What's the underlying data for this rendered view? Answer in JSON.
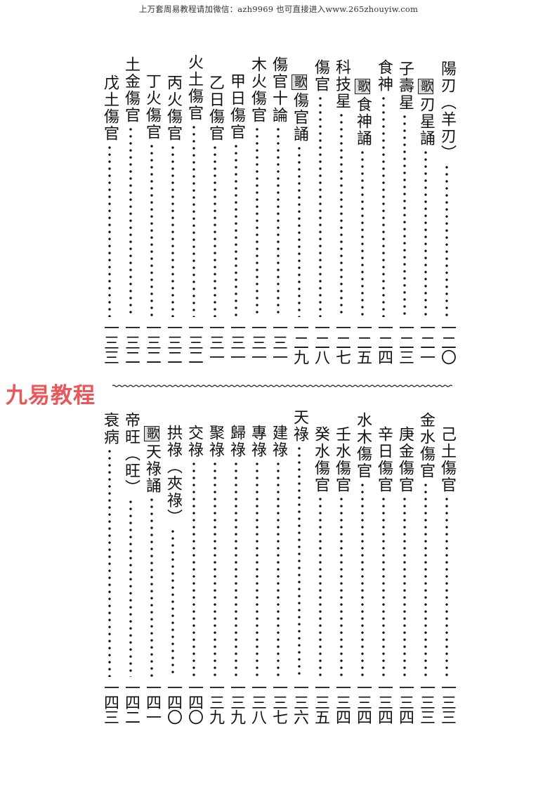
{
  "header": {
    "text": "上万套周易教程请加微信：azh9969   也可直接进入www.265zhouyiw.com"
  },
  "watermark": {
    "text": "九易教程",
    "color": "#e8575a"
  },
  "top_entries": [
    {
      "title": "陽刃（羊刃）",
      "page": "一二〇"
    },
    {
      "box": "歌",
      "title": "刃星誦",
      "page": "一二一"
    },
    {
      "title": "子壽星",
      "page": "一二三"
    },
    {
      "title": "食神",
      "page": "一二四"
    },
    {
      "box": "歌",
      "title": "食神誦",
      "page": "一二五"
    },
    {
      "title": "科技星",
      "page": "一二七"
    },
    {
      "title": "傷官",
      "page": "一二八"
    },
    {
      "box": "歌",
      "title": "傷官誦",
      "page": "一二九"
    },
    {
      "title": "傷官十論",
      "page": "一三一"
    },
    {
      "title": "木火傷官",
      "page": "一三一"
    },
    {
      "title": "甲日傷官",
      "page": "一三一"
    },
    {
      "title": "乙日傷官",
      "page": "一三一"
    },
    {
      "title": "火土傷官",
      "page": "一三二"
    },
    {
      "title": "丙火傷官",
      "page": "一三二"
    },
    {
      "title": "丁火傷官",
      "page": "一三二"
    },
    {
      "title": "土金傷官",
      "page": "一三二"
    },
    {
      "title": "戊土傷官",
      "page": "一三三"
    }
  ],
  "bottom_entries": [
    {
      "title": "己土傷官",
      "page": "一三三"
    },
    {
      "title": "金水傷官",
      "page": "一三三"
    },
    {
      "title": "庚金傷官",
      "page": "一三四"
    },
    {
      "title": "辛日傷官",
      "page": "一三四"
    },
    {
      "title": "水木傷官",
      "page": "一三四"
    },
    {
      "title": "壬水傷官",
      "page": "一三四"
    },
    {
      "title": "癸水傷官",
      "page": "一三五"
    },
    {
      "title": "天祿",
      "page": "一三六"
    },
    {
      "title": "建祿",
      "page": "一三七"
    },
    {
      "title": "專祿",
      "page": "一三八"
    },
    {
      "title": "歸祿",
      "page": "一三九"
    },
    {
      "title": "聚祿",
      "page": "一三九"
    },
    {
      "title": "交祿",
      "page": "一四〇"
    },
    {
      "title": "拱祿（夾祿）",
      "page": "一四〇"
    },
    {
      "box": "歌",
      "title": "天祿誦",
      "page": "一四一"
    },
    {
      "title": "帝旺（旺）",
      "page": "一四二"
    },
    {
      "title": "衰病",
      "page": "一四三"
    }
  ]
}
